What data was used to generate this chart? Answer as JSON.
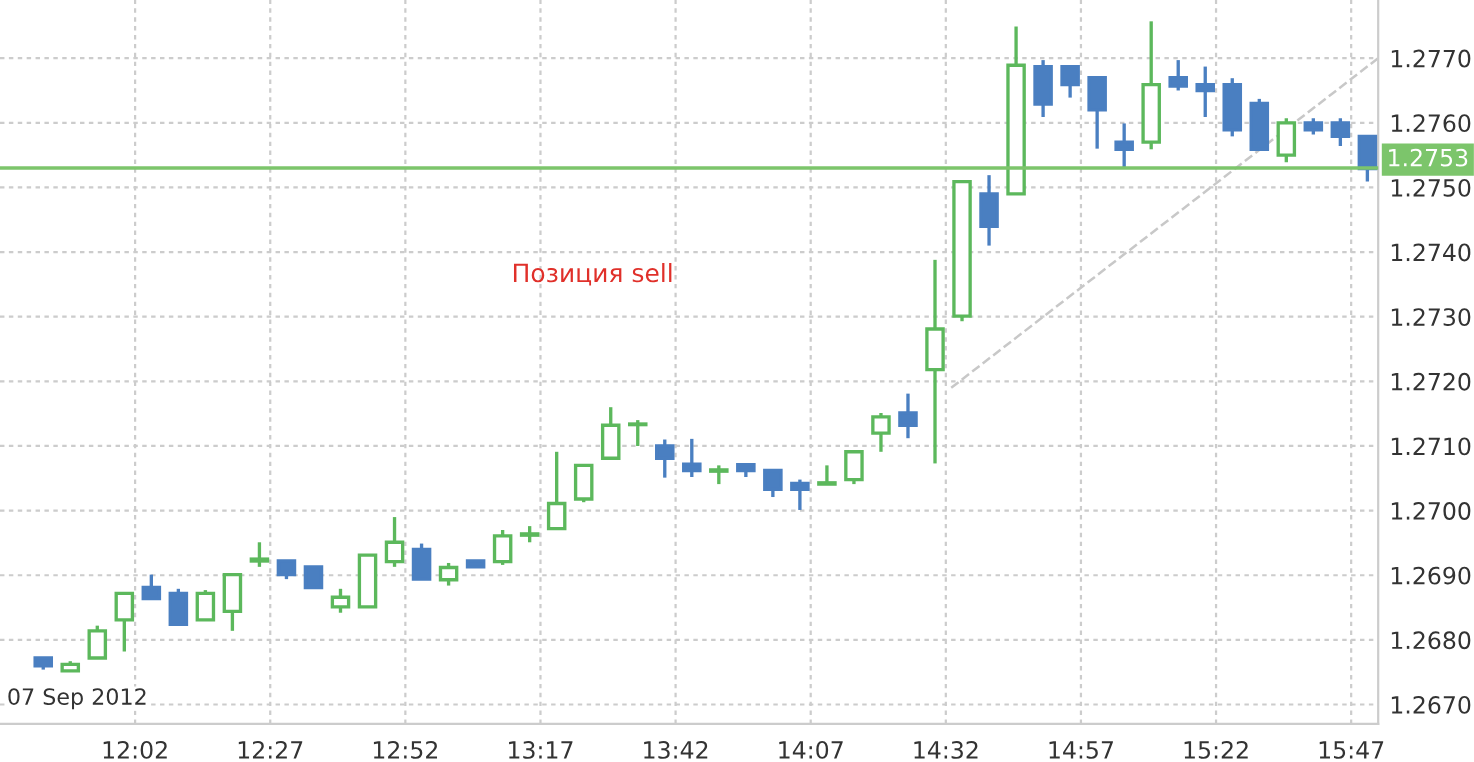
{
  "chart_data": {
    "type": "candlestick",
    "x": [
      "2012-09-07T11:45",
      "2012-09-07T11:50",
      "2012-09-07T11:55",
      "2012-09-07T12:00",
      "2012-09-07T12:05",
      "2012-09-07T12:10",
      "2012-09-07T12:15",
      "2012-09-07T12:20",
      "2012-09-07T12:25",
      "2012-09-07T12:30",
      "2012-09-07T12:35",
      "2012-09-07T12:40",
      "2012-09-07T12:45",
      "2012-09-07T12:50",
      "2012-09-07T12:55",
      "2012-09-07T13:00",
      "2012-09-07T13:05",
      "2012-09-07T13:10",
      "2012-09-07T13:15",
      "2012-09-07T13:20",
      "2012-09-07T13:25",
      "2012-09-07T13:30",
      "2012-09-07T13:35",
      "2012-09-07T13:40",
      "2012-09-07T13:45",
      "2012-09-07T13:50",
      "2012-09-07T13:55",
      "2012-09-07T14:00",
      "2012-09-07T14:05",
      "2012-09-07T14:10",
      "2012-09-07T14:15",
      "2012-09-07T14:20",
      "2012-09-07T14:25",
      "2012-09-07T14:30",
      "2012-09-07T14:35",
      "2012-09-07T14:40",
      "2012-09-07T14:45",
      "2012-09-07T14:50",
      "2012-09-07T14:55",
      "2012-09-07T15:00",
      "2012-09-07T15:05",
      "2012-09-07T15:10",
      "2012-09-07T15:15",
      "2012-09-07T15:20",
      "2012-09-07T15:25",
      "2012-09-07T15:30",
      "2012-09-07T15:35",
      "2012-09-07T15:40",
      "2012-09-07T15:45",
      "2012-09-07T15:50"
    ],
    "ohlc": [
      [
        1.26772,
        1.26772,
        1.26754,
        1.2676
      ],
      [
        1.26752,
        1.26767,
        1.26752,
        1.26762
      ],
      [
        1.26772,
        1.26822,
        1.26772,
        1.26814
      ],
      [
        1.26831,
        1.26872,
        1.26782,
        1.26872
      ],
      [
        1.26881,
        1.26901,
        1.26864,
        1.26864
      ],
      [
        1.26872,
        1.26879,
        1.26824,
        1.26824
      ],
      [
        1.26831,
        1.26877,
        1.26831,
        1.26872
      ],
      [
        1.26844,
        1.26901,
        1.26814,
        1.26901
      ],
      [
        1.26922,
        1.26951,
        1.26913,
        1.26925
      ],
      [
        1.26922,
        1.26922,
        1.26894,
        1.26901
      ],
      [
        1.26913,
        1.26913,
        1.26881,
        1.26881
      ],
      [
        1.26851,
        1.26879,
        1.26842,
        1.26866
      ],
      [
        1.26851,
        1.26931,
        1.26851,
        1.26931
      ],
      [
        1.26921,
        1.2699,
        1.26913,
        1.26951
      ],
      [
        1.2694,
        1.26949,
        1.26894,
        1.26894
      ],
      [
        1.26893,
        1.26919,
        1.26884,
        1.26912
      ],
      [
        1.26922,
        1.26922,
        1.26913,
        1.26913
      ],
      [
        1.26921,
        1.2697,
        1.26916,
        1.26961
      ],
      [
        1.26962,
        1.26976,
        1.26951,
        1.26964
      ],
      [
        1.26972,
        1.27091,
        1.26972,
        1.27011
      ],
      [
        1.27018,
        1.2707,
        1.27013,
        1.2707
      ],
      [
        1.27081,
        1.2716,
        1.27081,
        1.27132
      ],
      [
        1.27133,
        1.2714,
        1.271,
        1.27134
      ],
      [
        1.271,
        1.2711,
        1.27051,
        1.27081
      ],
      [
        1.27072,
        1.27111,
        1.27052,
        1.27062
      ],
      [
        1.27061,
        1.2707,
        1.27041,
        1.27063
      ],
      [
        1.27071,
        1.27071,
        1.27052,
        1.27062
      ],
      [
        1.27062,
        1.27062,
        1.27021,
        1.27033
      ],
      [
        1.27042,
        1.27048,
        1.27001,
        1.27033
      ],
      [
        1.27041,
        1.2707,
        1.27041,
        1.27043
      ],
      [
        1.27048,
        1.27091,
        1.27041,
        1.27091
      ],
      [
        1.2712,
        1.27151,
        1.27091,
        1.27145
      ],
      [
        1.27151,
        1.27181,
        1.27112,
        1.27132
      ],
      [
        1.27218,
        1.27388,
        1.27073,
        1.27281
      ],
      [
        1.27301,
        1.27509,
        1.27293,
        1.27509
      ],
      [
        1.2749,
        1.27519,
        1.2741,
        1.2744
      ],
      [
        1.2749,
        1.27749,
        1.2749,
        1.27689
      ],
      [
        1.27687,
        1.27697,
        1.27609,
        1.27629
      ],
      [
        1.27687,
        1.27687,
        1.27639,
        1.27659
      ],
      [
        1.2767,
        1.2767,
        1.2756,
        1.2762
      ],
      [
        1.2757,
        1.27599,
        1.27529,
        1.27559
      ],
      [
        1.2757,
        1.27757,
        1.27559,
        1.27659
      ],
      [
        1.2767,
        1.27697,
        1.2765,
        1.27657
      ],
      [
        1.27659,
        1.27687,
        1.27609,
        1.2765
      ],
      [
        1.27659,
        1.27669,
        1.27579,
        1.27589
      ],
      [
        1.2763,
        1.27637,
        1.27559,
        1.27559
      ],
      [
        1.2755,
        1.27607,
        1.27539,
        1.276
      ],
      [
        1.276,
        1.27607,
        1.27582,
        1.27589
      ],
      [
        1.276,
        1.27607,
        1.27564,
        1.27579
      ],
      [
        1.27579,
        1.27579,
        1.27509,
        1.27529
      ]
    ],
    "colors": [
      "#4a7fc1",
      "#5cb85c",
      "#5cb85c",
      "#5cb85c",
      "#4a7fc1",
      "#4a7fc1",
      "#5cb85c",
      "#5cb85c",
      "#5cb85c",
      "#4a7fc1",
      "#4a7fc1",
      "#5cb85c",
      "#5cb85c",
      "#5cb85c",
      "#4a7fc1",
      "#5cb85c",
      "#4a7fc1",
      "#5cb85c",
      "#5cb85c",
      "#5cb85c",
      "#5cb85c",
      "#5cb85c",
      "#5cb85c",
      "#4a7fc1",
      "#4a7fc1",
      "#5cb85c",
      "#4a7fc1",
      "#4a7fc1",
      "#4a7fc1",
      "#5cb85c",
      "#5cb85c",
      "#5cb85c",
      "#4a7fc1",
      "#5cb85c",
      "#5cb85c",
      "#4a7fc1",
      "#5cb85c",
      "#4a7fc1",
      "#4a7fc1",
      "#4a7fc1",
      "#4a7fc1",
      "#5cb85c",
      "#4a7fc1",
      "#4a7fc1",
      "#4a7fc1",
      "#4a7fc1",
      "#5cb85c",
      "#4a7fc1",
      "#4a7fc1",
      "#4a7fc1"
    ],
    "series": [
      {
        "type": "line",
        "x": [
          "2012-09-07T14:33",
          "2012-09-07T15:52"
        ],
        "values": [
          1.2719,
          1.277
        ],
        "color": "#c8c8c8",
        "line_style": "dashed"
      }
    ],
    "ref_lines": [
      {
        "axis": "y",
        "value": 1.2753,
        "label": "1.2753",
        "color": "#7cc56b"
      }
    ],
    "annotations": [
      "Позиция sell",
      "07 Sep 2012"
    ],
    "xlim": [
      "2012-09-07T11:37",
      "2012-09-07T15:52"
    ],
    "xticks": [
      {
        "value": "2012-09-07T12:02",
        "label": "12:02"
      },
      {
        "value": "2012-09-07T12:27",
        "label": "12:27"
      },
      {
        "value": "2012-09-07T12:52",
        "label": "12:52"
      },
      {
        "value": "2012-09-07T13:17",
        "label": "13:17"
      },
      {
        "value": "2012-09-07T13:42",
        "label": "13:42"
      },
      {
        "value": "2012-09-07T14:07",
        "label": "14:07"
      },
      {
        "value": "2012-09-07T14:32",
        "label": "14:32"
      },
      {
        "value": "2012-09-07T14:57",
        "label": "14:57"
      },
      {
        "value": "2012-09-07T15:22",
        "label": "15:22"
      },
      {
        "value": "2012-09-07T15:47",
        "label": "15:47"
      }
    ],
    "ylim": [
      1.2667,
      1.2779
    ],
    "yticks": [
      {
        "value": 1.267,
        "label": "1.2670"
      },
      {
        "value": 1.268,
        "label": "1.2680"
      },
      {
        "value": 1.269,
        "label": "1.2690"
      },
      {
        "value": 1.27,
        "label": "1.2700"
      },
      {
        "value": 1.271,
        "label": "1.2710"
      },
      {
        "value": 1.272,
        "label": "1.2720"
      },
      {
        "value": 1.273,
        "label": "1.2730"
      },
      {
        "value": 1.274,
        "label": "1.2740"
      },
      {
        "value": 1.275,
        "label": "1.2750"
      },
      {
        "value": 1.276,
        "label": "1.2760"
      },
      {
        "value": 1.277,
        "label": "1.2770"
      }
    ],
    "grid": true
  }
}
